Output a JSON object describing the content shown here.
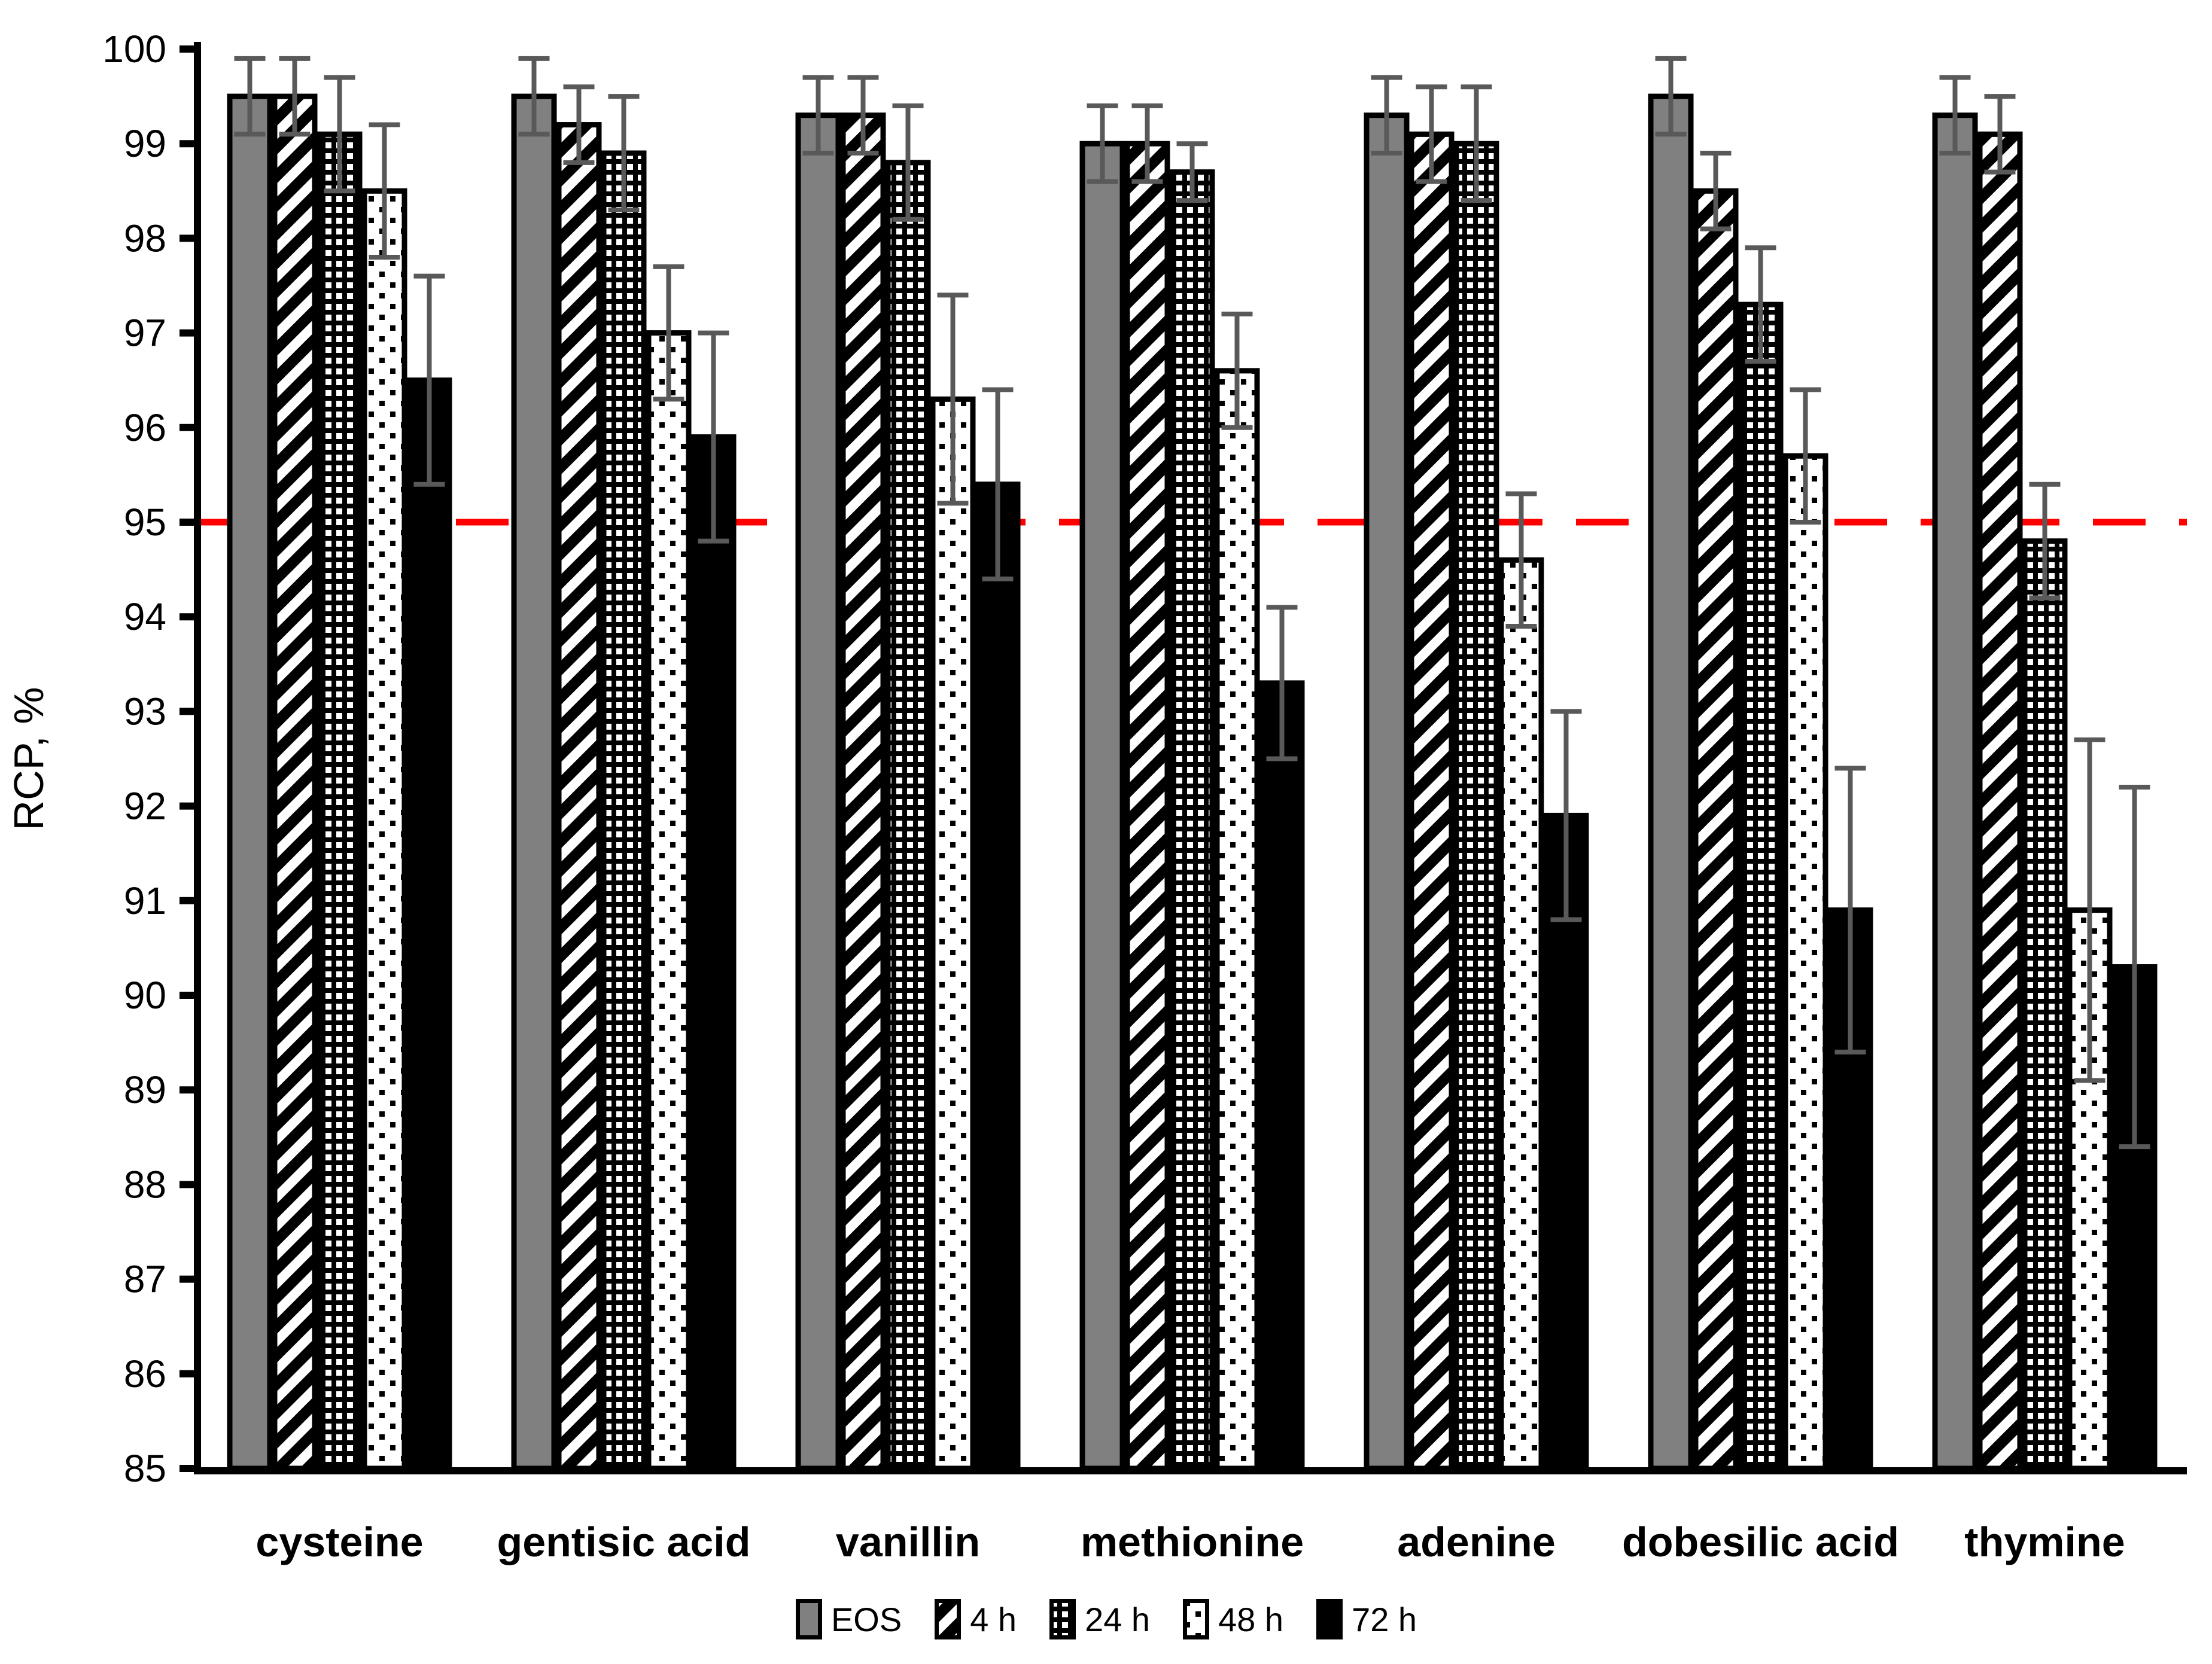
{
  "chart_data": {
    "type": "bar",
    "title": "",
    "xlabel": "",
    "ylabel": "RCP, %",
    "ylim": [
      85,
      100
    ],
    "ytick_step": 1,
    "yticks": [
      85,
      86,
      87,
      88,
      89,
      90,
      91,
      92,
      93,
      94,
      95,
      96,
      97,
      98,
      99,
      100
    ],
    "grid": false,
    "legend_position": "bottom",
    "categories": [
      "cysteine",
      "gentisic acid",
      "vanillin",
      "methionine",
      "adenine",
      "dobesilic acid",
      "thymine"
    ],
    "series": [
      {
        "name": "EOS",
        "pattern": "solid-gray",
        "values": [
          99.5,
          99.5,
          99.3,
          99.0,
          99.3,
          99.5,
          99.3
        ],
        "errors": [
          0.4,
          0.4,
          0.4,
          0.4,
          0.4,
          0.4,
          0.4
        ]
      },
      {
        "name": "4 h",
        "pattern": "diagonal-stripes",
        "values": [
          99.5,
          99.2,
          99.3,
          99.0,
          99.1,
          98.5,
          99.1
        ],
        "errors": [
          0.4,
          0.4,
          0.4,
          0.4,
          0.5,
          0.4,
          0.4
        ]
      },
      {
        "name": "24 h",
        "pattern": "grid-squares",
        "values": [
          99.1,
          98.9,
          98.8,
          98.7,
          99.0,
          97.3,
          94.8
        ],
        "errors": [
          0.6,
          0.6,
          0.6,
          0.3,
          0.6,
          0.6,
          0.6
        ]
      },
      {
        "name": "48 h",
        "pattern": "dotted-white",
        "values": [
          98.5,
          97.0,
          96.3,
          96.6,
          94.6,
          95.7,
          90.9
        ],
        "errors": [
          0.7,
          0.7,
          1.1,
          0.6,
          0.7,
          0.7,
          1.8
        ]
      },
      {
        "name": "72 h",
        "pattern": "solid-black",
        "values": [
          96.5,
          95.9,
          95.4,
          93.3,
          91.9,
          90.9,
          90.3
        ],
        "errors": [
          1.1,
          1.1,
          1.0,
          0.8,
          1.1,
          1.5,
          1.9
        ]
      }
    ],
    "threshold_line": {
      "value": 95,
      "color": "#FF0000",
      "style": "dashed"
    },
    "colors": {
      "background": "#FFFFFF",
      "bar_gray": "#808080",
      "bar_black": "#000000",
      "bar_outline": "#000000",
      "error_bar": "#595959",
      "text": "#000000",
      "threshold": "#FF0000"
    }
  }
}
